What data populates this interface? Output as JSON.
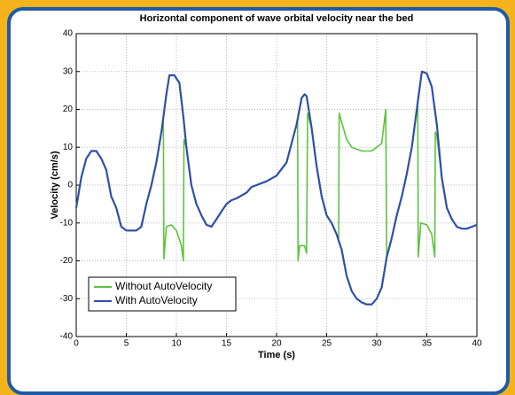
{
  "chart_data": {
    "type": "line",
    "title": "Horizontal component of wave orbital velocity near the bed",
    "xlabel": "Time (s)",
    "ylabel": "Velocity (cm/s)",
    "xlim": [
      0,
      40
    ],
    "ylim": [
      -40,
      40
    ],
    "xticks": [
      0,
      5,
      10,
      15,
      20,
      25,
      30,
      35,
      40
    ],
    "yticks": [
      -40,
      -30,
      -20,
      -10,
      0,
      10,
      20,
      30,
      40
    ],
    "grid": true,
    "legend": "lower left",
    "series": [
      {
        "name": "Without AutoVelocity",
        "color": "#5cc43c",
        "x": [
          0,
          0.5,
          1,
          1.5,
          2,
          2.5,
          3,
          3.5,
          4,
          4.5,
          5,
          5.5,
          6,
          6.5,
          7,
          7.5,
          8,
          8.5,
          8.7,
          8.75,
          9,
          9.5,
          10,
          10.5,
          10.7,
          10.75,
          11,
          11.5,
          12,
          12.5,
          13,
          13.5,
          14,
          14.5,
          15,
          15.5,
          16,
          17,
          17.5,
          18,
          19,
          20,
          21,
          21.5,
          22,
          22.1,
          22.15,
          22.3,
          22.8,
          23,
          23.1,
          23.5,
          24,
          24.5,
          25,
          25.5,
          26,
          26.2,
          26.25,
          27,
          27.5,
          28.5,
          29.5,
          30.5,
          30.9,
          31,
          31.5,
          32,
          32.5,
          33,
          33.5,
          34,
          34.1,
          34.15,
          34.4,
          35,
          35.5,
          35.8,
          35.85,
          36,
          36.5,
          37,
          37.5,
          38,
          38.5,
          39,
          39.5,
          40
        ],
        "values": [
          -6,
          2,
          7,
          9,
          9,
          7,
          4,
          -3,
          -6,
          -11,
          -12,
          -12,
          -12,
          -11,
          -5,
          0,
          6,
          14,
          17,
          -19.5,
          -11,
          -10.5,
          -12,
          -16,
          -20,
          12,
          10,
          0,
          -5,
          -8,
          -10.5,
          -11,
          -9,
          -7,
          -5,
          -4,
          -3.5,
          -2,
          -0.5,
          0,
          1,
          2.5,
          6,
          11,
          16,
          17,
          -20,
          -16,
          -16,
          -18,
          19,
          15,
          5,
          -3,
          -8,
          -10,
          -13,
          -14,
          19,
          12,
          10,
          9,
          9,
          11,
          20,
          -19,
          -14,
          -8,
          -3,
          3,
          10,
          20,
          21,
          -19,
          -10,
          -10.5,
          -13,
          -19,
          14,
          13,
          2,
          -6,
          -9,
          -11,
          -11.5,
          -11.5,
          -11,
          -10.5
        ]
      },
      {
        "name": "With AutoVelocity",
        "color": "#2f4fa8",
        "x": [
          0,
          0.5,
          1,
          1.5,
          2,
          2.5,
          3,
          3.5,
          4,
          4.5,
          5,
          5.5,
          6,
          6.5,
          7,
          7.5,
          8,
          8.5,
          9,
          9.3,
          9.8,
          10.3,
          10.7,
          11,
          11.5,
          12,
          12.5,
          13,
          13.5,
          14,
          14.5,
          15,
          15.5,
          16,
          17,
          17.5,
          18,
          19,
          20,
          21,
          21.5,
          22,
          22.5,
          22.8,
          23,
          23.5,
          24,
          24.5,
          25,
          25.5,
          26,
          26.5,
          27,
          27.5,
          28,
          28.5,
          29,
          29.5,
          30,
          30.5,
          31,
          31.5,
          32,
          32.5,
          33,
          33.5,
          34,
          34.5,
          35,
          35.5,
          36,
          36.5,
          37,
          37.5,
          38,
          38.5,
          39,
          39.5,
          40
        ],
        "values": [
          -6,
          2,
          7,
          9,
          9,
          7,
          4,
          -3,
          -6,
          -11,
          -12,
          -12,
          -12,
          -11,
          -5,
          0,
          6,
          14,
          24,
          29,
          29,
          27,
          18,
          10,
          0,
          -5,
          -8,
          -10.5,
          -11,
          -9,
          -7,
          -5,
          -4,
          -3.5,
          -2,
          -0.5,
          0,
          1,
          2.5,
          6,
          11,
          16,
          23,
          24,
          23.5,
          15,
          5,
          -3,
          -8,
          -10,
          -13,
          -17,
          -24,
          -28,
          -30,
          -31,
          -31.5,
          -31.5,
          -30,
          -27,
          -19,
          -14,
          -8,
          -3,
          3,
          10,
          20,
          30,
          29.5,
          26,
          16,
          2,
          -6,
          -9,
          -11,
          -11.5,
          -11.5,
          -11,
          -10.5
        ]
      }
    ]
  }
}
